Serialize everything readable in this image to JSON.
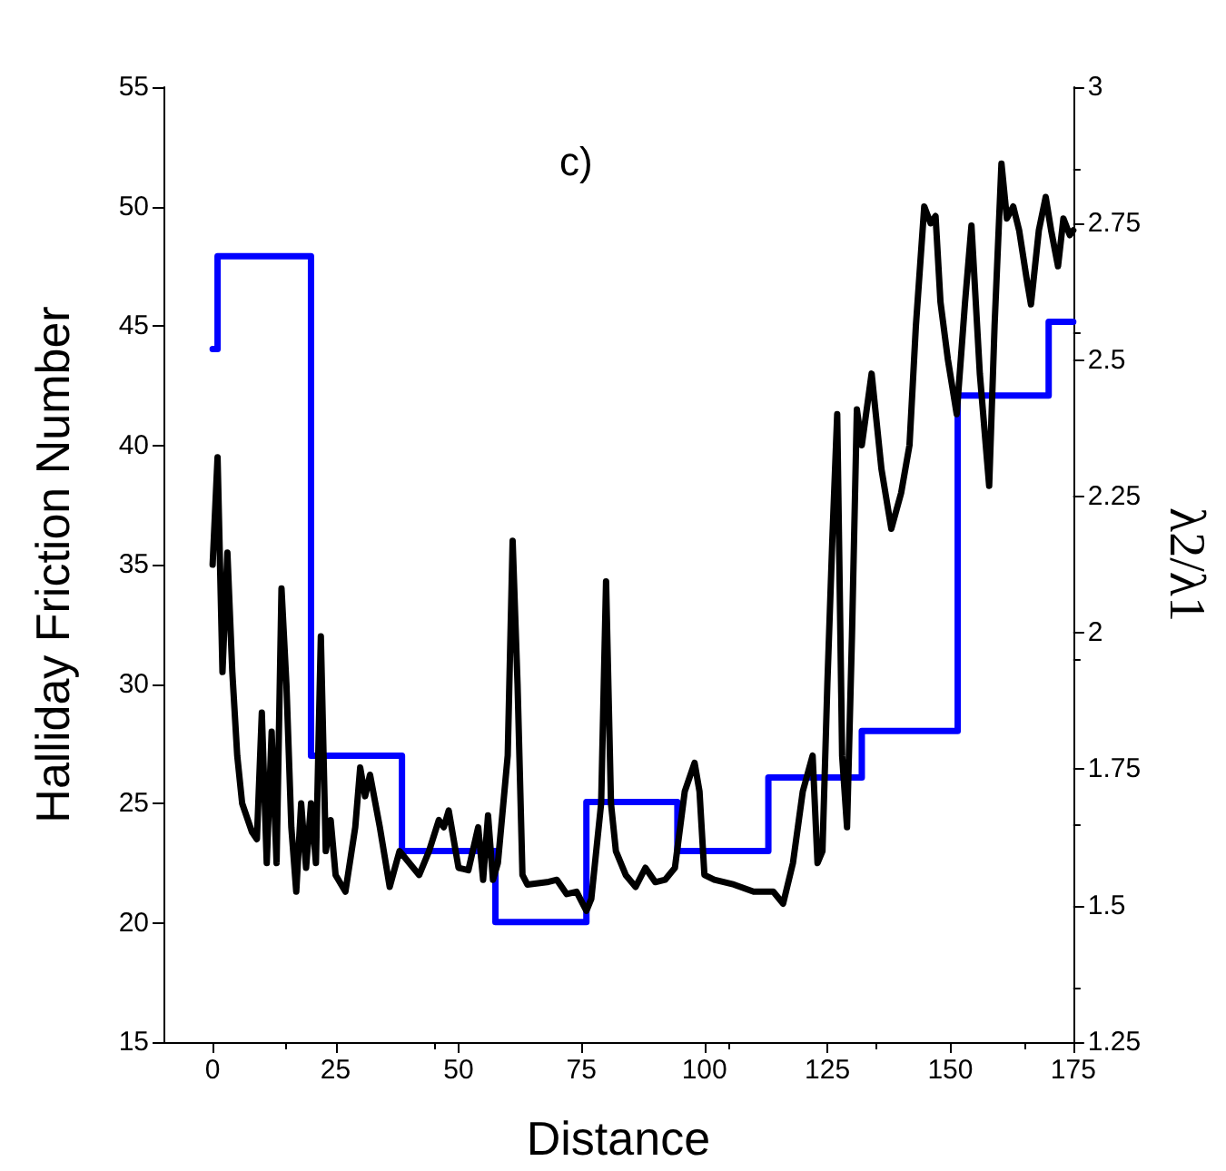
{
  "chart_data": {
    "type": "line",
    "xlabel": "Distance",
    "ylabel": "Halliday Friction Number",
    "y2label": "λ2/λ1",
    "annotations": [
      "c)"
    ],
    "xlim": [
      -10,
      175
    ],
    "xticks": [
      0,
      25,
      50,
      75,
      100,
      125,
      150,
      175
    ],
    "ylim": [
      15,
      55
    ],
    "yticks": [
      15,
      20,
      25,
      30,
      35,
      40,
      45,
      50,
      55
    ],
    "y2lim": [
      1.25,
      3
    ],
    "y2ticks": [
      1.25,
      1.5,
      1.75,
      2,
      2.25,
      2.5,
      2.75,
      3
    ],
    "grid": false,
    "marker": "none",
    "line_style": "solid",
    "series": [
      {
        "color": "#000000",
        "x": [
          0,
          1,
          2,
          3,
          4,
          5,
          6,
          8,
          9,
          10,
          11,
          12,
          13,
          14,
          15,
          16,
          17,
          18,
          19,
          20,
          21,
          22,
          23,
          24,
          25,
          27,
          29,
          30,
          31,
          32,
          34,
          36,
          38,
          40,
          42,
          44,
          46,
          47,
          48,
          50,
          52,
          54,
          55,
          56,
          57,
          58,
          60,
          61,
          62,
          63,
          64,
          68,
          70,
          72,
          74,
          76,
          77,
          79,
          80,
          81,
          82,
          84,
          86,
          88,
          90,
          92,
          94,
          96,
          98,
          99,
          100,
          102,
          106,
          110,
          114,
          116,
          118,
          120,
          122,
          123,
          124,
          125,
          126,
          127,
          128,
          129,
          130,
          131,
          132,
          134,
          136,
          138,
          140,
          141.7,
          143,
          144.7,
          146,
          147,
          148,
          149.5,
          151.3,
          153,
          154.3,
          156,
          157.9,
          159,
          160.4,
          161.5,
          162.8,
          164,
          165.5,
          166.4,
          168,
          169.4,
          170.5,
          171.9,
          173,
          174.3,
          175
        ],
        "values": [
          35,
          39.5,
          30.5,
          35.5,
          30.5,
          27,
          25,
          23.8,
          23.5,
          28.8,
          22.5,
          28,
          22.5,
          34,
          30,
          24,
          21.3,
          25,
          22.3,
          25,
          22.5,
          32,
          23,
          24.3,
          22,
          21.3,
          24,
          26.5,
          25.3,
          26.2,
          24,
          21.5,
          23,
          22.5,
          22,
          23,
          24.3,
          24,
          24.7,
          22.3,
          22.2,
          24,
          21.8,
          24.5,
          21.8,
          22.5,
          27,
          36,
          30,
          22,
          21.6,
          21.7,
          21.8,
          21.2,
          21.3,
          20.5,
          21,
          25,
          34.3,
          25,
          23,
          22,
          21.5,
          22.3,
          21.7,
          21.8,
          22.3,
          25.5,
          26.7,
          25.5,
          22,
          21.8,
          21.6,
          21.3,
          21.3,
          20.8,
          22.5,
          25.5,
          27,
          22.5,
          23,
          30,
          36,
          41.3,
          27,
          24,
          32,
          41.5,
          40,
          43,
          39,
          36.5,
          38,
          40,
          45,
          50,
          49.3,
          49.6,
          46,
          43.6,
          41.3,
          46,
          49.2,
          43,
          38.3,
          45,
          51.8,
          49.5,
          50,
          49,
          47,
          45.9,
          49,
          50.4,
          49,
          47.5,
          49.5,
          48.8,
          49
        ]
      },
      {
        "type": "step",
        "axis": "y2",
        "color": "#0000ff",
        "x": [
          0,
          1,
          20,
          38.5,
          57.5,
          76,
          94.5,
          113,
          132,
          151.5,
          170,
          175
        ],
        "values": [
          2.52,
          2.69,
          1.775,
          1.6,
          1.47,
          1.69,
          1.6,
          1.735,
          1.82,
          2.435,
          2.57,
          2.57
        ]
      }
    ]
  }
}
